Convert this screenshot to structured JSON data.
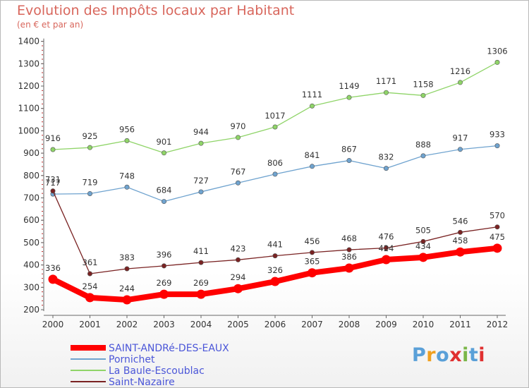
{
  "chart_data": {
    "type": "line",
    "title": "Evolution des Impôts locaux par Habitant",
    "subtitle": "(en € et par an)",
    "categories": [
      "2000",
      "2001",
      "2002",
      "2003",
      "2004",
      "2005",
      "2006",
      "2007",
      "2008",
      "2009",
      "2010",
      "2011",
      "2012"
    ],
    "ylim": [
      200,
      1400
    ],
    "yticks": [
      200,
      300,
      400,
      500,
      600,
      700,
      800,
      900,
      1000,
      1100,
      1200,
      1300,
      1400
    ],
    "grid": false,
    "legend_position": "bottom-left",
    "series": [
      {
        "name": "SAINT-ANDRé-DES-EAUX",
        "color": "#ff0000",
        "values": [
          336,
          254,
          244,
          269,
          269,
          294,
          326,
          365,
          386,
          424,
          434,
          458,
          475
        ]
      },
      {
        "name": "Pornichet",
        "color": "#6fa3cf",
        "values": [
          717,
          719,
          748,
          684,
          727,
          767,
          806,
          841,
          867,
          832,
          888,
          917,
          933
        ]
      },
      {
        "name": "La Baule-Escoublac",
        "color": "#8fd468",
        "values": [
          916,
          925,
          956,
          901,
          944,
          970,
          1017,
          1111,
          1149,
          1171,
          1158,
          1216,
          1306
        ]
      },
      {
        "name": "Saint-Nazaire",
        "color": "#7a2323",
        "values": [
          731,
          361,
          383,
          396,
          411,
          423,
          441,
          456,
          468,
          476,
          505,
          546,
          570
        ]
      }
    ]
  },
  "logo": {
    "text": "Proxiti",
    "colors": [
      "#5aa0d8",
      "#f0a020",
      "#5aa0d8",
      "#e03030",
      "#7ab648",
      "#5aa0d8",
      "#e03030"
    ]
  }
}
